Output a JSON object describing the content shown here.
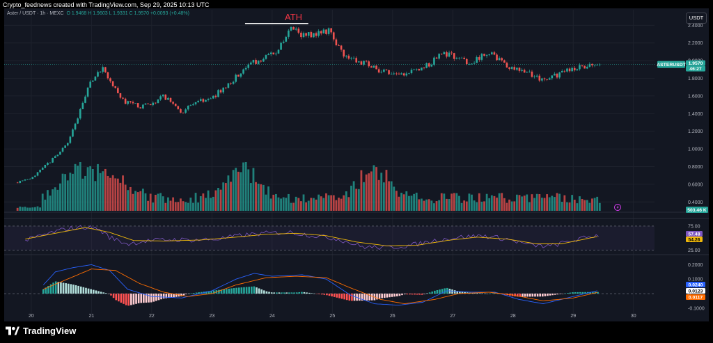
{
  "header": {
    "caption": "Crypto_feednews created with TradingView.com, Sep 29, 2025 10:13 UTC",
    "symbol": "Aster / USDT · 1h · MEXC",
    "open": "O 1.9468",
    "high": "H 1.9603",
    "low": "L 1.9331",
    "close": "C 1.9570",
    "change": "+0.0093 (+0.48%)",
    "currency": "USDT"
  },
  "annotation": {
    "ath_label": "ATH"
  },
  "price_tag": {
    "ticker": "ASTERUSDT",
    "price": "1.9570",
    "countdown": "46:27"
  },
  "volume_tag": "503.46 K",
  "rsi_tags": {
    "rsi": "57.48",
    "ma": "54.26"
  },
  "macd_tags": {
    "macd": "0.0240",
    "signal": "0.0123",
    "hist": "0.0117"
  },
  "branding": {
    "logo_text": "TradingView"
  },
  "colors": {
    "up": "#26a69a",
    "down": "#ef5350",
    "rsi_line": "#7e57c2",
    "rsi_ma": "#f0b90b",
    "macd_line": "#2962ff",
    "signal_line": "#ff6d00"
  },
  "chart_data": {
    "type": "candlestick",
    "x_ticks": [
      "20",
      "21",
      "22",
      "23",
      "24",
      "25",
      "26",
      "27",
      "28",
      "29",
      "30"
    ],
    "x_range": [
      19.55,
      30.35
    ],
    "y_ticks": [
      "2.4000",
      "2.2000",
      "2.0000",
      "1.8000",
      "1.6000",
      "1.4000",
      "1.2000",
      "1.0000",
      "0.8000",
      "0.6000",
      "0.4000"
    ],
    "price_range": [
      0.3,
      2.45
    ],
    "price_path": [
      [
        19.73,
        0.62
      ],
      [
        20.0,
        0.66
      ],
      [
        20.3,
        0.85
      ],
      [
        20.6,
        1.05
      ],
      [
        20.85,
        1.5
      ],
      [
        21.0,
        1.78
      ],
      [
        21.2,
        1.92
      ],
      [
        21.3,
        1.78
      ],
      [
        21.5,
        1.55
      ],
      [
        21.8,
        1.48
      ],
      [
        22.0,
        1.52
      ],
      [
        22.2,
        1.6
      ],
      [
        22.5,
        1.42
      ],
      [
        22.8,
        1.55
      ],
      [
        23.0,
        1.58
      ],
      [
        23.3,
        1.75
      ],
      [
        23.6,
        1.95
      ],
      [
        23.9,
        2.05
      ],
      [
        24.1,
        2.12
      ],
      [
        24.3,
        2.35
      ],
      [
        24.5,
        2.3
      ],
      [
        24.7,
        2.28
      ],
      [
        24.95,
        2.35
      ],
      [
        25.2,
        2.05
      ],
      [
        25.5,
        1.98
      ],
      [
        25.8,
        1.88
      ],
      [
        26.1,
        1.82
      ],
      [
        26.4,
        1.9
      ],
      [
        26.6,
        1.95
      ],
      [
        26.8,
        2.1
      ],
      [
        27.1,
        2.02
      ],
      [
        27.3,
        1.98
      ],
      [
        27.6,
        2.1
      ],
      [
        27.9,
        1.92
      ],
      [
        28.2,
        1.88
      ],
      [
        28.5,
        1.77
      ],
      [
        28.8,
        1.85
      ],
      [
        29.1,
        1.94
      ],
      [
        29.44,
        1.957
      ]
    ],
    "ath_line": {
      "x_start": 23.55,
      "x_end": 24.6,
      "price": 2.42
    },
    "rsi": {
      "levels": [
        25,
        75
      ],
      "range": [
        20,
        85
      ],
      "ticks": [
        "75.00",
        "25.00"
      ],
      "path": [
        [
          19.9,
          45
        ],
        [
          20.3,
          60
        ],
        [
          20.6,
          70
        ],
        [
          20.9,
          73
        ],
        [
          21.1,
          70
        ],
        [
          21.3,
          52
        ],
        [
          21.6,
          38
        ],
        [
          21.9,
          44
        ],
        [
          22.3,
          47
        ],
        [
          22.7,
          46
        ],
        [
          23.1,
          48
        ],
        [
          23.5,
          56
        ],
        [
          23.9,
          60
        ],
        [
          24.3,
          62
        ],
        [
          24.7,
          55
        ],
        [
          25.1,
          48
        ],
        [
          25.5,
          32
        ],
        [
          25.9,
          30
        ],
        [
          26.3,
          35
        ],
        [
          26.7,
          45
        ],
        [
          27.1,
          52
        ],
        [
          27.5,
          55
        ],
        [
          27.9,
          48
        ],
        [
          28.3,
          35
        ],
        [
          28.6,
          33
        ],
        [
          29.0,
          45
        ],
        [
          29.44,
          57.48
        ]
      ],
      "ma_path": [
        [
          19.9,
          48
        ],
        [
          20.4,
          60
        ],
        [
          20.9,
          72
        ],
        [
          21.3,
          62
        ],
        [
          21.7,
          45
        ],
        [
          22.2,
          44
        ],
        [
          22.8,
          46
        ],
        [
          23.4,
          52
        ],
        [
          23.9,
          58
        ],
        [
          24.4,
          60
        ],
        [
          24.9,
          55
        ],
        [
          25.4,
          42
        ],
        [
          25.9,
          34
        ],
        [
          26.4,
          35
        ],
        [
          26.9,
          45
        ],
        [
          27.4,
          52
        ],
        [
          27.9,
          48
        ],
        [
          28.4,
          38
        ],
        [
          28.8,
          38
        ],
        [
          29.44,
          54.26
        ]
      ]
    },
    "macd": {
      "range": [
        -0.12,
        0.25
      ],
      "ticks": [
        "0.2000",
        "0.1000",
        "0",
        "-0.1000"
      ],
      "macd_path": [
        [
          20.2,
          0.06
        ],
        [
          20.4,
          0.15
        ],
        [
          20.7,
          0.18
        ],
        [
          21.0,
          0.2
        ],
        [
          21.3,
          0.16
        ],
        [
          21.6,
          0.03
        ],
        [
          22.0,
          -0.02
        ],
        [
          22.5,
          -0.03
        ],
        [
          23.0,
          0.02
        ],
        [
          23.4,
          0.1
        ],
        [
          23.7,
          0.14
        ],
        [
          24.0,
          0.12
        ],
        [
          24.5,
          0.13
        ],
        [
          24.9,
          0.1
        ],
        [
          25.3,
          -0.01
        ],
        [
          25.7,
          -0.07
        ],
        [
          26.1,
          -0.08
        ],
        [
          26.5,
          -0.06
        ],
        [
          26.9,
          0.02
        ],
        [
          27.3,
          0.01
        ],
        [
          27.7,
          0.01
        ],
        [
          28.1,
          -0.04
        ],
        [
          28.5,
          -0.07
        ],
        [
          28.9,
          -0.03
        ],
        [
          29.44,
          0.024
        ]
      ],
      "signal_path": [
        [
          20.2,
          0.03
        ],
        [
          20.6,
          0.1
        ],
        [
          21.0,
          0.17
        ],
        [
          21.4,
          0.16
        ],
        [
          21.8,
          0.07
        ],
        [
          22.2,
          0.01
        ],
        [
          22.6,
          -0.02
        ],
        [
          23.0,
          0.0
        ],
        [
          23.4,
          0.06
        ],
        [
          23.9,
          0.11
        ],
        [
          24.4,
          0.12
        ],
        [
          24.9,
          0.11
        ],
        [
          25.3,
          0.04
        ],
        [
          25.8,
          -0.04
        ],
        [
          26.2,
          -0.07
        ],
        [
          26.7,
          -0.04
        ],
        [
          27.1,
          0.0
        ],
        [
          27.6,
          0.01
        ],
        [
          28.0,
          -0.01
        ],
        [
          28.5,
          -0.05
        ],
        [
          29.0,
          -0.03
        ],
        [
          29.44,
          0.0123
        ]
      ],
      "current_hist": 0.0117
    },
    "volume_peak_note": "relative volume bars",
    "volume_peaks": [
      [
        20.8,
        1.0
      ],
      [
        21.4,
        0.6
      ],
      [
        23.5,
        0.95
      ],
      [
        25.7,
        0.85
      ]
    ]
  }
}
